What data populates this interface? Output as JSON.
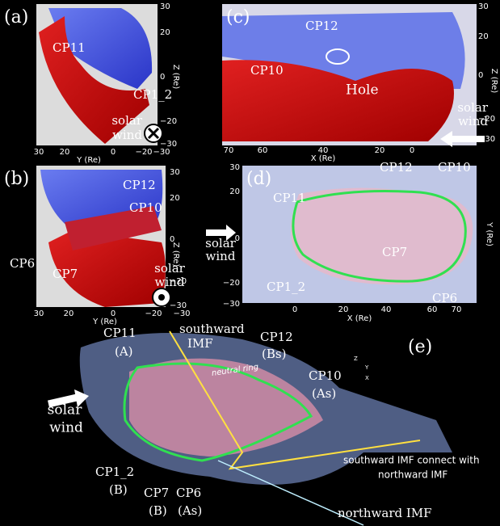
{
  "panel_a": {
    "label": "(a)",
    "annotations": [
      "CP11",
      "CP1_2"
    ],
    "solar_wind": [
      "solar",
      "wind"
    ],
    "right_ticks": [
      "30",
      "20",
      "0",
      "−20",
      "−30"
    ],
    "bottom_ticks": [
      "30",
      "20",
      "0",
      "−20",
      "−30"
    ],
    "bottom_title": "Y (Re)",
    "right_title": "Z (Re)"
  },
  "panel_b": {
    "label": "(b)",
    "annotations": [
      "CP12",
      "CP10",
      "CP6",
      "CP7"
    ],
    "solar_wind": [
      "solar",
      "wind"
    ],
    "right_ticks": [
      "30",
      "20",
      "0",
      "−20",
      "−30"
    ],
    "bottom_ticks": [
      "30",
      "20",
      "0",
      "−20",
      "−30"
    ],
    "bottom_title": "Y (Re)",
    "right_title": "Z (Re)"
  },
  "panel_c": {
    "label": "(c)",
    "annotations": [
      "CP12",
      "CP10",
      "Hole"
    ],
    "solar_wind": [
      "solar",
      "wind"
    ],
    "right_ticks": [
      "30",
      "20",
      "0",
      "−20",
      "−30"
    ],
    "bottom_ticks": [
      "70",
      "60",
      "40",
      "20",
      "0"
    ],
    "bottom_title": "X (Re)",
    "right_title": "Z (Re)"
  },
  "panel_d": {
    "label": "(d)",
    "annotations": [
      "CP12",
      "CP10",
      "CP11",
      "CP7",
      "CP1_2",
      "CP6"
    ],
    "solar_wind": [
      "solar",
      "wind"
    ],
    "left_ticks": [
      "30",
      "20",
      "0",
      "−20",
      "−30"
    ],
    "bottom_ticks": [
      "0",
      "20",
      "40",
      "60",
      "70"
    ],
    "bottom_title": "X (Re)",
    "right_title": "Y (Re)"
  },
  "panel_e": {
    "label": "(e)",
    "annotations": [
      "CP11",
      "(A)",
      "CP12",
      "(Bs)",
      "CP10",
      "(As)",
      "CP1_2",
      "(B)",
      "CP7",
      "(B)",
      "CP6",
      "(As)",
      "neutral ring"
    ],
    "solar_wind": [
      "solar",
      "wind"
    ],
    "southward_imf": [
      "southward",
      "IMF"
    ],
    "connect_note": [
      "southward IMF connect with",
      "northward IMF"
    ],
    "northward_imf": "northward IMF",
    "axes": [
      "Z",
      "Y",
      "X"
    ]
  }
}
